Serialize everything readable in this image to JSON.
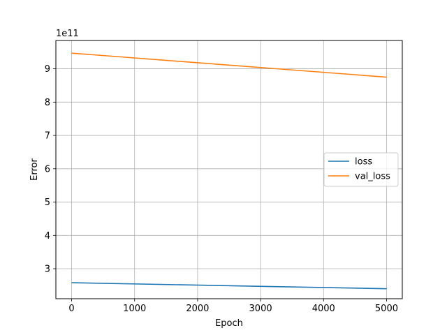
{
  "chart_data": {
    "type": "line",
    "xlabel": "Epoch",
    "ylabel": "Error",
    "offset_text": "1e11",
    "x": [
      0,
      5000
    ],
    "xlim": [
      -250,
      5250
    ],
    "ylim": [
      2.1,
      9.85
    ],
    "xticks": [
      0,
      1000,
      2000,
      3000,
      4000,
      5000
    ],
    "yticks": [
      3,
      4,
      5,
      6,
      7,
      8,
      9
    ],
    "grid": true,
    "legend_position": "center-right",
    "series": [
      {
        "name": "loss",
        "color": "#1f77b4",
        "values": [
          2.58,
          2.4
        ]
      },
      {
        "name": "val_loss",
        "color": "#ff7f0e",
        "values": [
          9.47,
          8.75
        ]
      }
    ]
  }
}
